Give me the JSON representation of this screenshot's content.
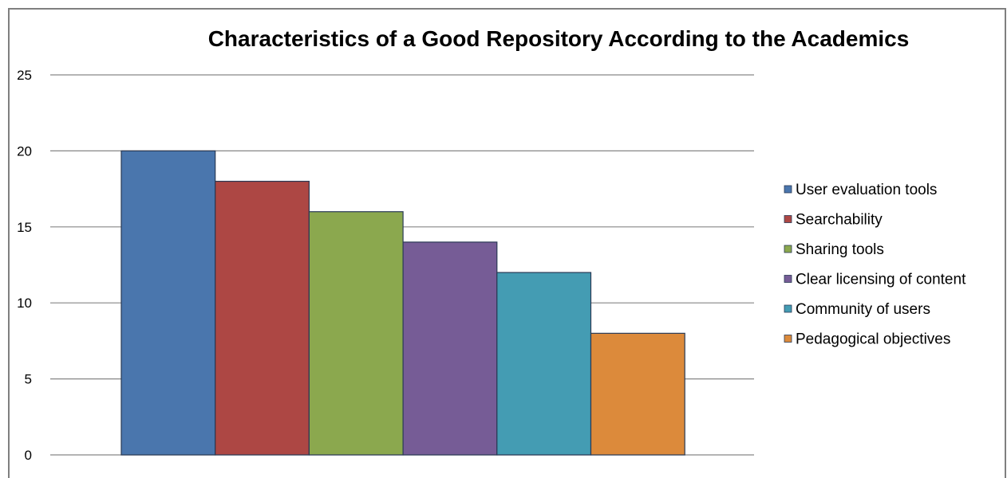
{
  "chart_data": {
    "type": "bar",
    "title": "Characteristics of a Good Repository According to the Academics",
    "xlabel": "",
    "ylabel": "",
    "ylim": [
      0,
      25
    ],
    "yticks": [
      0,
      5,
      10,
      15,
      20,
      25
    ],
    "grid": true,
    "legend_position": "right",
    "series": [
      {
        "name": "User evaluation tools",
        "value": 20,
        "color": "#4a76ad"
      },
      {
        "name": "Searchability",
        "value": 18,
        "color": "#ad4744"
      },
      {
        "name": "Sharing tools",
        "value": 16,
        "color": "#8ba84e"
      },
      {
        "name": "Clear licensing of content",
        "value": 14,
        "color": "#765c96"
      },
      {
        "name": "Community of users",
        "value": 12,
        "color": "#449cb3"
      },
      {
        "name": "Pedagogical objectives",
        "value": 8,
        "color": "#dc8a3b"
      }
    ]
  }
}
